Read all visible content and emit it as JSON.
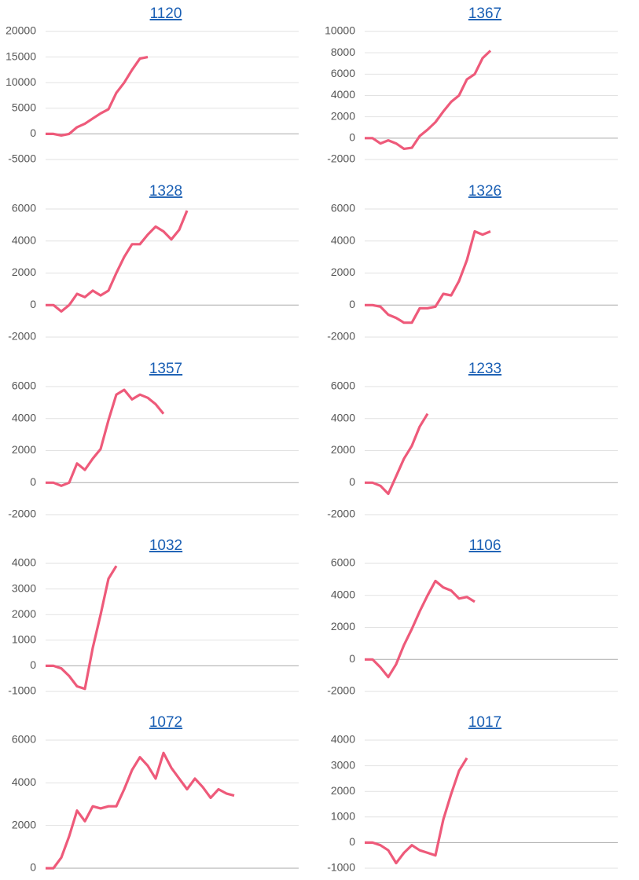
{
  "chart_data": [
    {
      "type": "line",
      "title": "1120",
      "color": "#ee5a7a",
      "ylim": [
        -5000,
        20000
      ],
      "yticks": [
        -5000,
        0,
        5000,
        10000,
        15000,
        20000
      ],
      "grid": true,
      "values": [
        0,
        0,
        -300,
        0,
        1300,
        2000,
        3000,
        4000,
        4800,
        8000,
        10000,
        12500,
        14700,
        15000
      ]
    },
    {
      "type": "line",
      "title": "1367",
      "color": "#ee5a7a",
      "ylim": [
        -2000,
        10000
      ],
      "yticks": [
        -2000,
        0,
        2000,
        4000,
        6000,
        8000,
        10000
      ],
      "grid": true,
      "values": [
        0,
        0,
        -500,
        -200,
        -500,
        -1000,
        -900,
        200,
        800,
        1500,
        2500,
        3400,
        4000,
        5500,
        6000,
        7500,
        8200
      ]
    },
    {
      "type": "line",
      "title": "1328",
      "color": "#ee5a7a",
      "ylim": [
        -2000,
        6000
      ],
      "yticks": [
        -2000,
        0,
        2000,
        4000,
        6000
      ],
      "grid": true,
      "values": [
        0,
        0,
        -400,
        0,
        700,
        500,
        900,
        600,
        900,
        2000,
        3000,
        3800,
        3800,
        4400,
        4900,
        4600,
        4100,
        4700,
        5900
      ]
    },
    {
      "type": "line",
      "title": "1326",
      "color": "#ee5a7a",
      "ylim": [
        -2000,
        6000
      ],
      "yticks": [
        -2000,
        0,
        2000,
        4000,
        6000
      ],
      "grid": true,
      "values": [
        0,
        0,
        -100,
        -600,
        -800,
        -1100,
        -1100,
        -200,
        -200,
        -100,
        700,
        600,
        1500,
        2800,
        4600,
        4400,
        4600
      ]
    },
    {
      "type": "line",
      "title": "1357",
      "color": "#ee5a7a",
      "ylim": [
        -2000,
        6000
      ],
      "yticks": [
        -2000,
        0,
        2000,
        4000,
        6000
      ],
      "grid": true,
      "values": [
        0,
        0,
        -200,
        0,
        1200,
        800,
        1500,
        2100,
        3900,
        5500,
        5800,
        5200,
        5500,
        5300,
        4900,
        4300
      ]
    },
    {
      "type": "line",
      "title": "1233",
      "color": "#ee5a7a",
      "ylim": [
        -2000,
        6000
      ],
      "yticks": [
        -2000,
        0,
        2000,
        4000,
        6000
      ],
      "grid": true,
      "values": [
        0,
        0,
        -200,
        -700,
        400,
        1500,
        2300,
        3500,
        4300
      ]
    },
    {
      "type": "line",
      "title": "1032",
      "color": "#ee5a7a",
      "ylim": [
        -1000,
        4000
      ],
      "yticks": [
        -1000,
        0,
        1000,
        2000,
        3000,
        4000
      ],
      "grid": true,
      "values": [
        0,
        0,
        -100,
        -400,
        -800,
        -900,
        700,
        2000,
        3400,
        3900
      ]
    },
    {
      "type": "line",
      "title": "1106",
      "color": "#ee5a7a",
      "ylim": [
        -2000,
        6000
      ],
      "yticks": [
        -2000,
        0,
        2000,
        4000,
        6000
      ],
      "grid": true,
      "values": [
        0,
        0,
        -500,
        -1100,
        -300,
        900,
        1900,
        3000,
        4000,
        4900,
        4500,
        4300,
        3800,
        3900,
        3600
      ]
    },
    {
      "type": "line",
      "title": "1072",
      "color": "#ee5a7a",
      "ylim": [
        0,
        6000
      ],
      "yticks": [
        0,
        2000,
        4000,
        6000
      ],
      "grid": true,
      "values": [
        0,
        0,
        500,
        1500,
        2700,
        2200,
        2900,
        2800,
        2900,
        2900,
        3700,
        4600,
        5200,
        4800,
        4200,
        5400,
        4700,
        4200,
        3700,
        4200,
        3800,
        3300,
        3700,
        3500,
        3400
      ]
    },
    {
      "type": "line",
      "title": "1017",
      "color": "#ee5a7a",
      "ylim": [
        -1000,
        4000
      ],
      "yticks": [
        -1000,
        0,
        1000,
        2000,
        3000,
        4000
      ],
      "grid": true,
      "values": [
        0,
        0,
        -100,
        -300,
        -800,
        -400,
        -100,
        -300,
        -400,
        -500,
        900,
        1900,
        2800,
        3300
      ]
    }
  ]
}
